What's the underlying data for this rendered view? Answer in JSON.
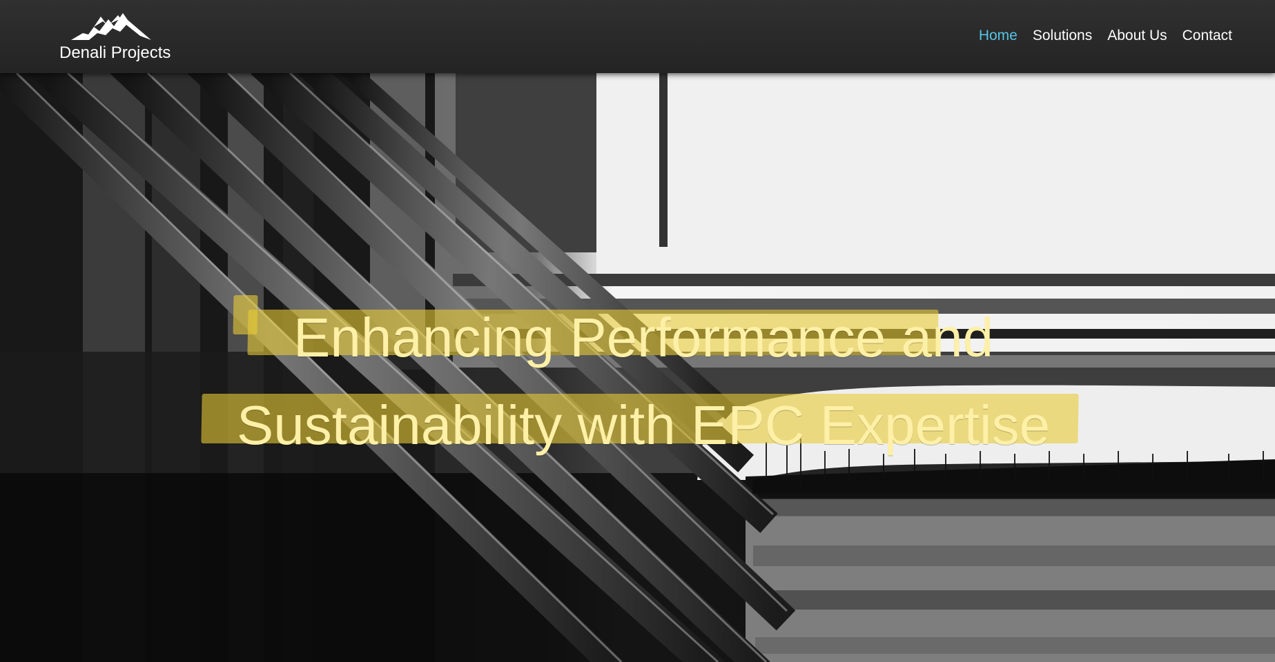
{
  "brand": {
    "name": "Denali Projects",
    "logo_icon": "mountain-icon"
  },
  "navigation": {
    "items": [
      {
        "label": "Home",
        "active": true
      },
      {
        "label": "Solutions",
        "active": false
      },
      {
        "label": "About Us",
        "active": false
      },
      {
        "label": "Contact",
        "active": false
      }
    ]
  },
  "hero": {
    "headline": "Enhancing Performance and Sustainability with EPC Expertise"
  },
  "colors": {
    "header": "#2a2a2a",
    "active_nav": "#55c6e6",
    "headline": "#fff0a7",
    "highlight": "#e8cc36"
  }
}
